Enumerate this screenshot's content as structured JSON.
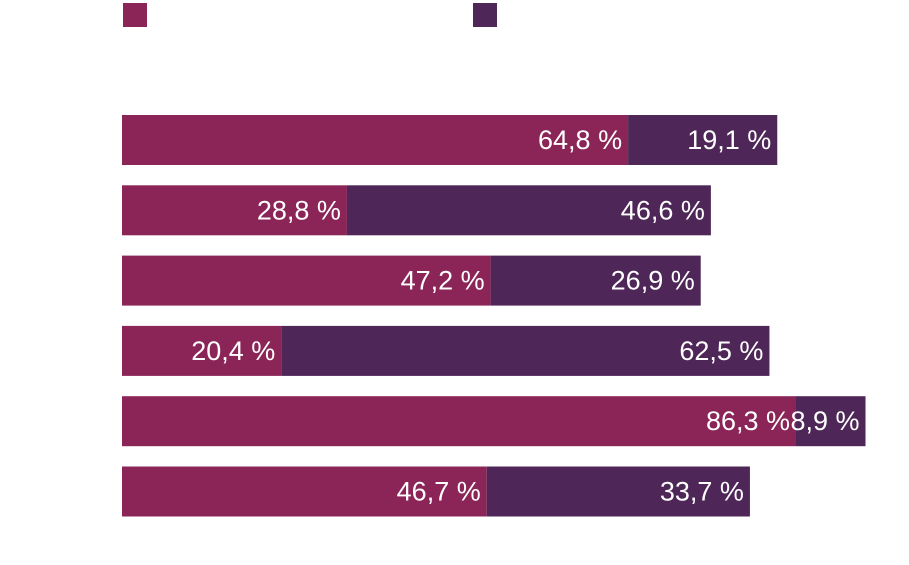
{
  "chart_data": {
    "type": "bar",
    "orientation": "horizontal",
    "stacked": true,
    "title": "",
    "xlabel": "",
    "ylabel": "",
    "xlim": [
      0,
      100
    ],
    "grid": false,
    "legend_position": "top",
    "categories": [
      "",
      "",
      "",
      "",
      "",
      ""
    ],
    "series": [
      {
        "name": "",
        "color": "#8b2558",
        "values": [
          64.8,
          28.8,
          47.2,
          20.4,
          86.3,
          46.7
        ],
        "labels": [
          "64,8 %",
          "28,8 %",
          "47,2 %",
          "20,4 %",
          "86,3 %",
          "46,7 %"
        ]
      },
      {
        "name": "",
        "color": "#4e2657",
        "values": [
          19.1,
          46.6,
          26.9,
          62.5,
          8.9,
          33.7
        ],
        "labels": [
          "19,1 %",
          "46,6 %",
          "26,9 %",
          "62,5 %",
          "8,9 %",
          "33,7 %"
        ]
      }
    ]
  }
}
